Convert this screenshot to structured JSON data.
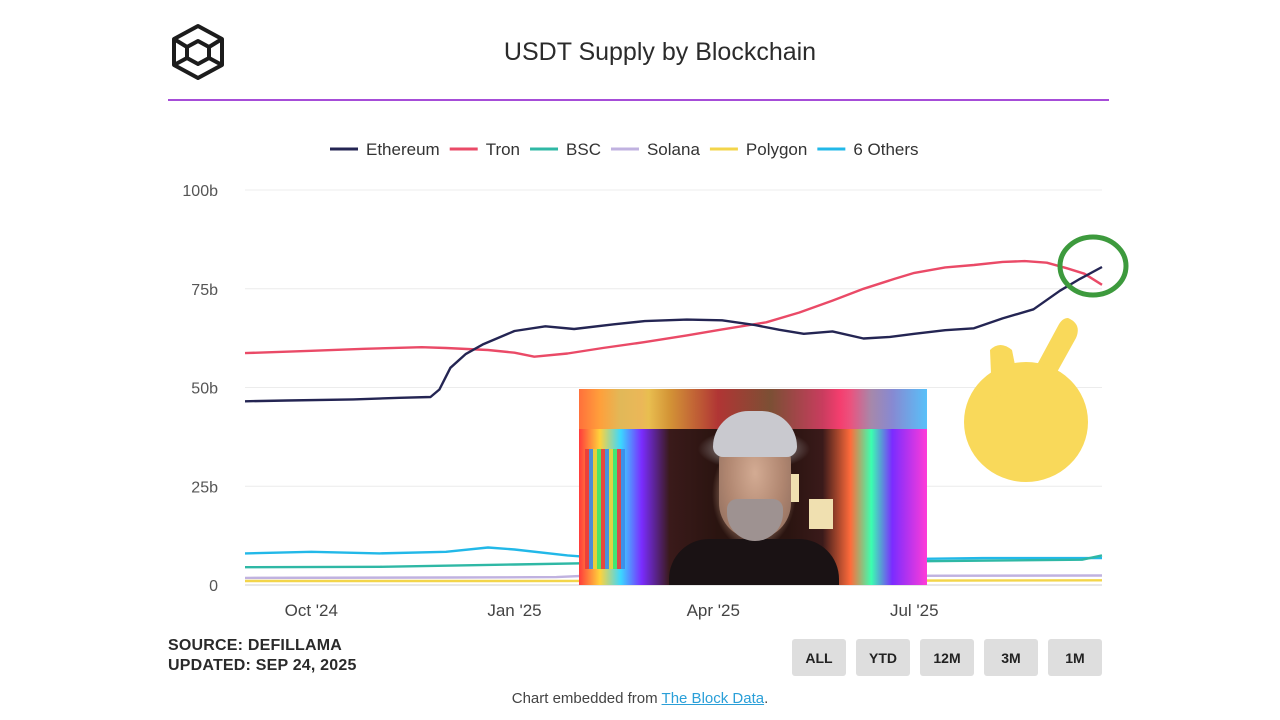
{
  "header": {
    "title": "USDT Supply by Blockchain"
  },
  "chart_data": {
    "type": "line",
    "title": "USDT Supply by Blockchain",
    "xlabel": "",
    "ylabel": "",
    "ylim": [
      0,
      100
    ],
    "y_unit": "b",
    "yticks": [
      0,
      25,
      50,
      75,
      100
    ],
    "ytick_labels": [
      "0",
      "25b",
      "50b",
      "75b",
      "100b"
    ],
    "xtick_labels": [
      "Oct '24",
      "Jan '25",
      "Apr '25",
      "Jul '25"
    ],
    "xtick_dates": [
      "2024-10-01",
      "2025-01-01",
      "2025-04-01",
      "2025-07-01"
    ],
    "xlim": [
      "2024-09-01",
      "2025-09-24"
    ],
    "grid": true,
    "legend_position": "top",
    "series": [
      {
        "name": "Ethereum",
        "color": "#242553",
        "points": [
          [
            "2024-09-01",
            46.5
          ],
          [
            "2024-09-20",
            46.7
          ],
          [
            "2024-10-20",
            47.0
          ],
          [
            "2024-11-10",
            47.4
          ],
          [
            "2024-11-24",
            47.6
          ],
          [
            "2024-11-28",
            49.5
          ],
          [
            "2024-12-03",
            55.0
          ],
          [
            "2024-12-10",
            58.5
          ],
          [
            "2024-12-18",
            61.0
          ],
          [
            "2025-01-01",
            64.3
          ],
          [
            "2025-01-15",
            65.5
          ],
          [
            "2025-01-28",
            64.8
          ],
          [
            "2025-02-15",
            66.0
          ],
          [
            "2025-03-01",
            66.8
          ],
          [
            "2025-03-20",
            67.2
          ],
          [
            "2025-04-05",
            67.0
          ],
          [
            "2025-04-20",
            65.8
          ],
          [
            "2025-05-01",
            64.6
          ],
          [
            "2025-05-12",
            63.6
          ],
          [
            "2025-05-25",
            64.2
          ],
          [
            "2025-06-08",
            62.4
          ],
          [
            "2025-06-20",
            62.8
          ],
          [
            "2025-07-01",
            63.6
          ],
          [
            "2025-07-15",
            64.5
          ],
          [
            "2025-07-28",
            65.0
          ],
          [
            "2025-08-10",
            67.5
          ],
          [
            "2025-08-24",
            69.8
          ],
          [
            "2025-09-05",
            74.5
          ],
          [
            "2025-09-14",
            77.5
          ],
          [
            "2025-09-24",
            80.5
          ]
        ]
      },
      {
        "name": "Tron",
        "color": "#ea4a67",
        "points": [
          [
            "2024-09-01",
            58.7
          ],
          [
            "2024-10-01",
            59.3
          ],
          [
            "2024-10-25",
            59.8
          ],
          [
            "2024-11-20",
            60.2
          ],
          [
            "2024-12-01",
            60.0
          ],
          [
            "2024-12-20",
            59.5
          ],
          [
            "2025-01-01",
            58.8
          ],
          [
            "2025-01-10",
            57.8
          ],
          [
            "2025-01-25",
            58.6
          ],
          [
            "2025-02-10",
            60.0
          ],
          [
            "2025-03-01",
            61.5
          ],
          [
            "2025-03-20",
            63.2
          ],
          [
            "2025-04-05",
            64.7
          ],
          [
            "2025-04-25",
            66.5
          ],
          [
            "2025-05-10",
            69.0
          ],
          [
            "2025-05-25",
            72.0
          ],
          [
            "2025-06-08",
            75.0
          ],
          [
            "2025-06-22",
            77.5
          ],
          [
            "2025-07-01",
            79.0
          ],
          [
            "2025-07-15",
            80.4
          ],
          [
            "2025-07-28",
            81.0
          ],
          [
            "2025-08-10",
            81.8
          ],
          [
            "2025-08-20",
            82.0
          ],
          [
            "2025-08-30",
            81.6
          ],
          [
            "2025-09-08",
            80.2
          ],
          [
            "2025-09-16",
            78.8
          ],
          [
            "2025-09-24",
            76.0
          ]
        ]
      },
      {
        "name": "BSC",
        "color": "#2fb8a5",
        "points": [
          [
            "2024-09-01",
            4.5
          ],
          [
            "2024-11-01",
            4.6
          ],
          [
            "2025-01-01",
            5.2
          ],
          [
            "2025-02-10",
            5.6
          ],
          [
            "2025-05-01",
            5.7
          ],
          [
            "2025-07-01",
            6.0
          ],
          [
            "2025-09-15",
            6.4
          ],
          [
            "2025-09-24",
            7.5
          ]
        ]
      },
      {
        "name": "Solana",
        "color": "#c0b2e0",
        "points": [
          [
            "2024-09-01",
            1.8
          ],
          [
            "2024-12-01",
            1.9
          ],
          [
            "2025-01-20",
            2.0
          ],
          [
            "2025-02-05",
            2.4
          ],
          [
            "2025-06-01",
            2.3
          ],
          [
            "2025-09-24",
            2.4
          ]
        ]
      },
      {
        "name": "Polygon",
        "color": "#f3d54a",
        "points": [
          [
            "2024-09-01",
            1.0
          ],
          [
            "2025-01-01",
            1.0
          ],
          [
            "2025-06-01",
            1.1
          ],
          [
            "2025-09-24",
            1.2
          ]
        ]
      },
      {
        "name": "6 Others",
        "color": "#22b8e8",
        "points": [
          [
            "2024-09-01",
            8.0
          ],
          [
            "2024-10-01",
            8.4
          ],
          [
            "2024-11-01",
            8.0
          ],
          [
            "2024-12-01",
            8.4
          ],
          [
            "2024-12-20",
            9.5
          ],
          [
            "2025-01-01",
            9.0
          ],
          [
            "2025-01-25",
            7.5
          ],
          [
            "2025-02-10",
            6.8
          ],
          [
            "2025-03-01",
            6.5
          ],
          [
            "2025-07-01",
            6.6
          ],
          [
            "2025-08-01",
            6.8
          ],
          [
            "2025-09-24",
            6.8
          ]
        ]
      }
    ]
  },
  "footer": {
    "source": "SOURCE: DEFILLAMA",
    "updated": "UPDATED: SEP 24, 2025",
    "range_buttons": [
      "ALL",
      "YTD",
      "12M",
      "3M",
      "1M"
    ],
    "embed_prefix": "Chart embedded from ",
    "embed_link": "The Block Data",
    "embed_suffix": "."
  },
  "overlays": {
    "logo_icon": "the-block-cube-logo-icon",
    "highlight_circle_color": "#3d9a3d",
    "hand_icon": "pointing-hand-icon",
    "hand_color": "#f9d95a",
    "video_icon": "presenter-video-thumbnail"
  }
}
